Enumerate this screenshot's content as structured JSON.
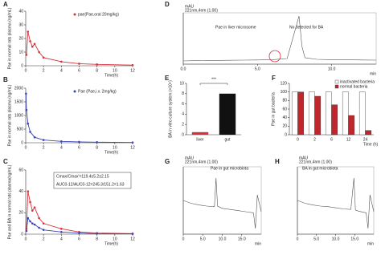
{
  "chart_data": [
    {
      "type": "line",
      "panel": "A",
      "markers": true,
      "xlabel": "Time(h)",
      "ylabel": "Pae in normal rats plasma (ng/mL)",
      "x": [
        0.083,
        0.25,
        0.5,
        0.75,
        1,
        1.5,
        2,
        4,
        6,
        8,
        12
      ],
      "series": [
        {
          "name": "pae(Pae,oral 20mg/kg)",
          "color": "#d6303a",
          "values": [
            8,
            25,
            18,
            14,
            16,
            10,
            6,
            3,
            1.5,
            1,
            0.5
          ]
        }
      ],
      "xlim": [
        0,
        12
      ],
      "xticks": [
        0,
        2,
        4,
        6,
        8,
        10,
        12
      ],
      "ylim": [
        0,
        40
      ],
      "yticks": [
        0,
        10,
        20,
        30,
        40
      ],
      "annotations": []
    },
    {
      "type": "line",
      "panel": "B",
      "markers": true,
      "xlabel": "Time(h)",
      "ylabel": "Pae in normal rats plasma (ng/mL)",
      "x": [
        0.033,
        0.083,
        0.25,
        0.5,
        1,
        2,
        4,
        6,
        8,
        12
      ],
      "series": [
        {
          "name": "Pae (Pae,i.v. 2mg/kg)",
          "color": "#3a43b8",
          "values": [
            1800,
            1200,
            700,
            400,
            200,
            100,
            50,
            30,
            20,
            10
          ]
        }
      ],
      "xlim": [
        0,
        12
      ],
      "xticks": [
        0,
        2,
        4,
        6,
        8,
        10,
        12
      ],
      "ylim": [
        0,
        2000
      ],
      "yticks": [
        0,
        500,
        1000,
        1500,
        2000
      ],
      "annotations": []
    },
    {
      "type": "line",
      "panel": "C",
      "markers": true,
      "xlabel": "Time(h)",
      "ylabel": "Pae and BA in normal rats plasma(ng/mL)",
      "x": [
        0.083,
        0.25,
        0.5,
        0.75,
        1,
        1.5,
        2,
        4,
        6,
        8,
        12
      ],
      "series": [
        {
          "color": "#d6303a",
          "values": [
            5,
            40,
            30,
            22,
            25,
            15,
            10,
            5,
            2,
            1,
            0.5
          ]
        },
        {
          "color": "#3a43b8",
          "values": [
            3,
            15,
            12,
            10,
            9,
            6,
            4,
            2,
            1,
            0.5,
            0.3
          ]
        }
      ],
      "xlim": [
        0,
        12
      ],
      "xticks": [
        0,
        2,
        4,
        6,
        8,
        10,
        12
      ],
      "ylim": [
        0,
        60
      ],
      "yticks": [
        0,
        20,
        40,
        60
      ],
      "annotations": [
        "Cmax/Cmax'=119.4±5.2±2.15",
        "AUC0-12/AUC0-12=245.3/151.2=1.63"
      ]
    },
    {
      "type": "line",
      "panel": "D",
      "markers": false,
      "xlabel": "min",
      "x": [
        0,
        1,
        2,
        3,
        4,
        5,
        6,
        7,
        7.8,
        8,
        8.2,
        9,
        10,
        11,
        12,
        13
      ],
      "series": [
        {
          "color": "#555555",
          "values": [
            0,
            20,
            30,
            40,
            50,
            60,
            80,
            150,
            2800,
            900,
            200,
            100,
            80,
            70,
            60,
            50
          ]
        }
      ],
      "xlim": [
        0,
        13
      ],
      "xticks": [
        {
          "value": 0,
          "label": "0.0"
        },
        {
          "value": 5,
          "label": "5.0"
        },
        {
          "value": 10,
          "label": "10.0"
        }
      ],
      "ylim": [
        -200,
        3000
      ],
      "annotations": [
        "mAU",
        "221nm,4nm (1.00)",
        "Pae in liver microsome",
        "No detected for BA"
      ]
    },
    {
      "type": "bar",
      "panel": "E",
      "ylabel": "BA in vitro culture system (×10⁴)",
      "categories": [
        "liver",
        "gut"
      ],
      "values": [
        0.5,
        8
      ],
      "colors": [
        "#d6303a",
        "#111111"
      ],
      "ylim": [
        0,
        10
      ],
      "yticks": [
        0,
        2,
        4,
        6,
        8,
        10
      ],
      "annotations": [
        "***"
      ]
    },
    {
      "type": "bar",
      "panel": "F",
      "xlabel": "Time (h)",
      "ylabel": "Pae in gut bacteria",
      "categories": [
        "0",
        "2",
        "6",
        "12",
        "24"
      ],
      "series": [
        {
          "name": "inactivated bacteria",
          "color": "#ffffff",
          "values": [
            100,
            100,
            100,
            100,
            100
          ]
        },
        {
          "name": "normal bacteria",
          "color": "#c0272d",
          "values": [
            100,
            90,
            70,
            45,
            10
          ]
        }
      ],
      "ylim": [
        0,
        120
      ],
      "yticks": [
        0,
        20,
        40,
        60,
        80,
        100,
        120
      ],
      "annotations": []
    },
    {
      "type": "line",
      "panel": "G",
      "markers": false,
      "xlabel": "min",
      "x": [
        0,
        2,
        4,
        6,
        8,
        8.4,
        8.8,
        10,
        12,
        14,
        16,
        18,
        18.5,
        19,
        20
      ],
      "series": [
        {
          "color": "#555555",
          "values": [
            200,
            150,
            120,
            100,
            90,
            600,
            100,
            60,
            40,
            20,
            0,
            -20,
            -300,
            300,
            0
          ]
        }
      ],
      "xlim": [
        0,
        20
      ],
      "xticks": [
        0,
        {
          "value": 5,
          "label": "5.0"
        },
        {
          "value": 10,
          "label": "10.0"
        },
        {
          "value": 15,
          "label": "15.0"
        }
      ],
      "ylim": [
        -400,
        800
      ],
      "annotations": [
        "mAU",
        "221nm,4nm (1.00)",
        "Pae in gut microbiota"
      ]
    },
    {
      "type": "line",
      "panel": "H",
      "markers": false,
      "xlabel": "min",
      "x": [
        0,
        2,
        4,
        6,
        8,
        10,
        12,
        14,
        14.8,
        15.2,
        16,
        18,
        18.5,
        19,
        20
      ],
      "series": [
        {
          "color": "#555555",
          "values": [
            200,
            150,
            120,
            100,
            90,
            70,
            50,
            40,
            600,
            30,
            10,
            -20,
            -300,
            300,
            0
          ]
        }
      ],
      "xlim": [
        0,
        20
      ],
      "xticks": [
        0,
        {
          "value": 5,
          "label": "5.0"
        },
        {
          "value": 10,
          "label": "10.0"
        },
        {
          "value": 15,
          "label": "15.0"
        }
      ],
      "ylim": [
        -400,
        800
      ],
      "annotations": [
        "mAU",
        "221nm,4nm (1.00)",
        "BA in gut microbiota"
      ]
    }
  ]
}
